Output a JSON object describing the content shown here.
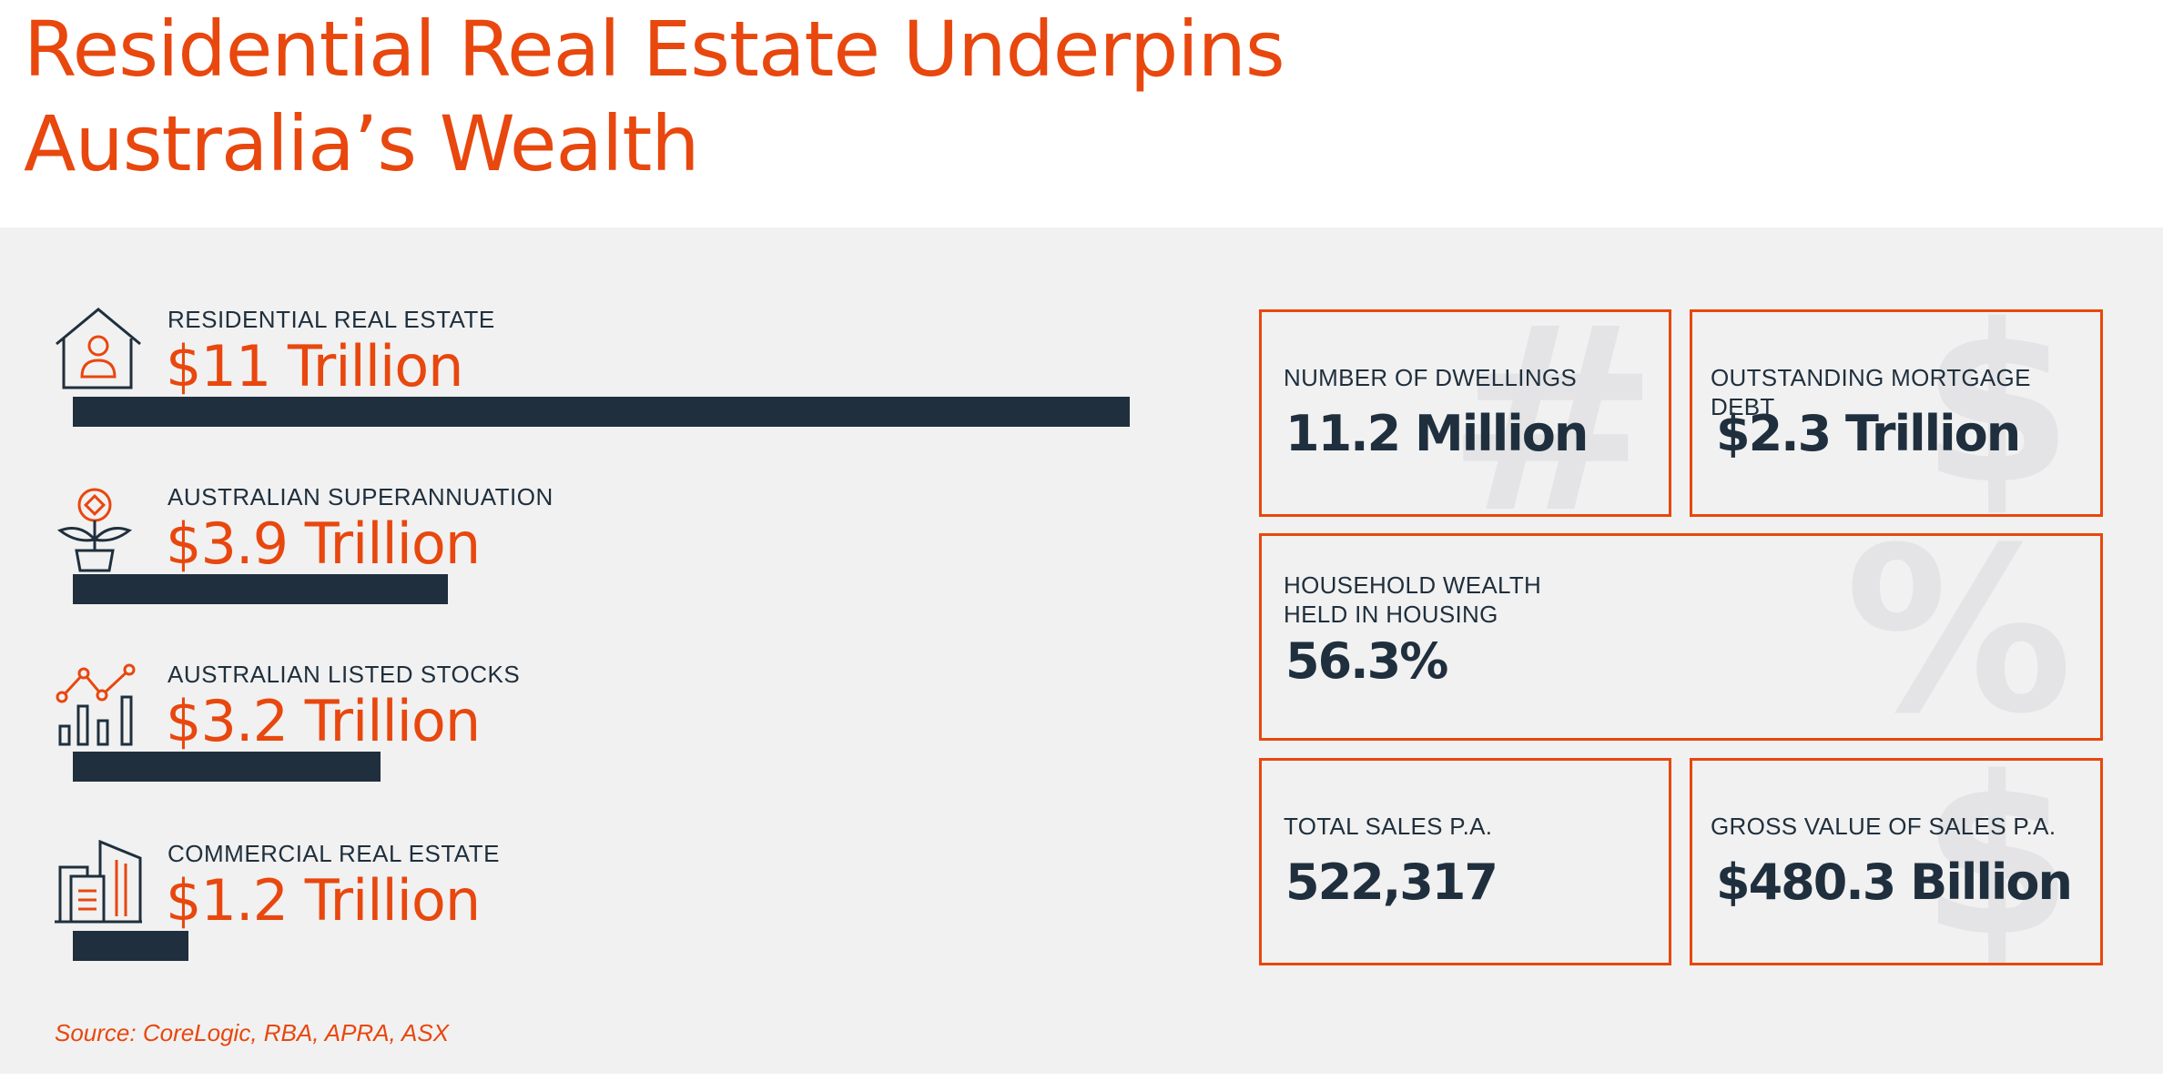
{
  "title": {
    "line1": "Residential Real Estate Underpins",
    "line2": "Australia’s Wealth"
  },
  "chart_data": {
    "type": "bar",
    "categories": [
      "Residential Real Estate",
      "Australian Superannuation",
      "Australian Listed Stocks",
      "Commercial Real Estate"
    ],
    "values": [
      11,
      3.9,
      3.2,
      1.2
    ],
    "value_labels": [
      "$11 Trillion",
      "$3.9 Trillion",
      "$3.2 Trillion",
      "$1.2 Trillion"
    ],
    "unit": "Trillion",
    "xlim": [
      0,
      11
    ],
    "icons": [
      "house-person-icon",
      "plant-coin-icon",
      "stock-chart-icon",
      "office-building-icon"
    ]
  },
  "colors": {
    "accent": "#e8470e",
    "navy": "#1f2f3d",
    "panel": "#f1f1f1",
    "watermark": "#e4e4e6"
  },
  "stats": [
    {
      "label": "Number of Dwellings",
      "value": "11.2 Million",
      "watermark": "#"
    },
    {
      "label": "Outstanding Mortgage Debt",
      "value": "$2.3 Trillion",
      "watermark": "$"
    },
    {
      "label_line1": "Household Wealth",
      "label_line2": "Held in Housing",
      "value": "56.3%",
      "watermark": "%"
    },
    {
      "label": "Total Sales P.A.",
      "value": "522,317"
    },
    {
      "label": "Gross Value of Sales P.A.",
      "value": "$480.3 Billion",
      "watermark": "$"
    }
  ],
  "source": "Source: CoreLogic, RBA, APRA, ASX"
}
